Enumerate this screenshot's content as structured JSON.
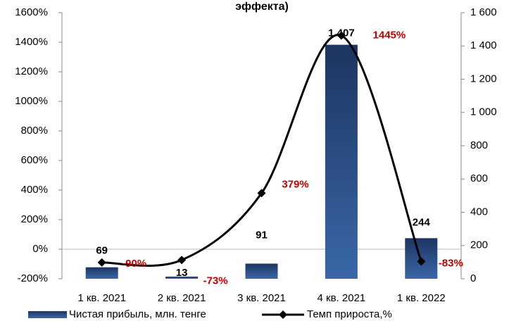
{
  "chart_data": {
    "type": "bar-line",
    "title": "эффекта)",
    "categories": [
      "1 кв. 2021",
      "2 кв. 2021",
      "3 кв. 2021",
      "4 кв. 2021",
      "1 кв. 2022"
    ],
    "series": [
      {
        "name": "Чистая прибыль, млн. тенге",
        "type": "bar",
        "axis": "y2",
        "color": "#1f3a68",
        "values": [
          69,
          13,
          91,
          1407,
          244
        ],
        "value_labels": [
          "69",
          "13",
          "91",
          "1 407",
          "244"
        ]
      },
      {
        "name": "Темп прироста,%",
        "type": "line",
        "axis": "y",
        "color": "#000000",
        "values": [
          -90,
          -73,
          379,
          1445,
          -83
        ],
        "value_labels": [
          "-90%",
          "-73%",
          "379%",
          "1445%",
          "-83%"
        ]
      }
    ],
    "ylim": [
      -200,
      1600
    ],
    "yticks": [
      {
        "value": -200,
        "label": "-200%"
      },
      {
        "value": 0,
        "label": "0%"
      },
      {
        "value": 200,
        "label": "200%"
      },
      {
        "value": 400,
        "label": "400%"
      },
      {
        "value": 600,
        "label": "600%"
      },
      {
        "value": 800,
        "label": "800%"
      },
      {
        "value": 1000,
        "label": "1000%"
      },
      {
        "value": 1200,
        "label": "1200%"
      },
      {
        "value": 1400,
        "label": "1400%"
      },
      {
        "value": 1600,
        "label": "1600%"
      }
    ],
    "y2lim": [
      0,
      1600
    ],
    "y2ticks": [
      0,
      200,
      400,
      600,
      800,
      {
        "value": 1000,
        "label": "1 000"
      },
      {
        "value": 1200,
        "label": "1 200"
      },
      {
        "value": 1400,
        "label": "1 400"
      },
      {
        "value": 1600,
        "label": "1 600"
      }
    ],
    "line_label_color": "#c00000"
  }
}
